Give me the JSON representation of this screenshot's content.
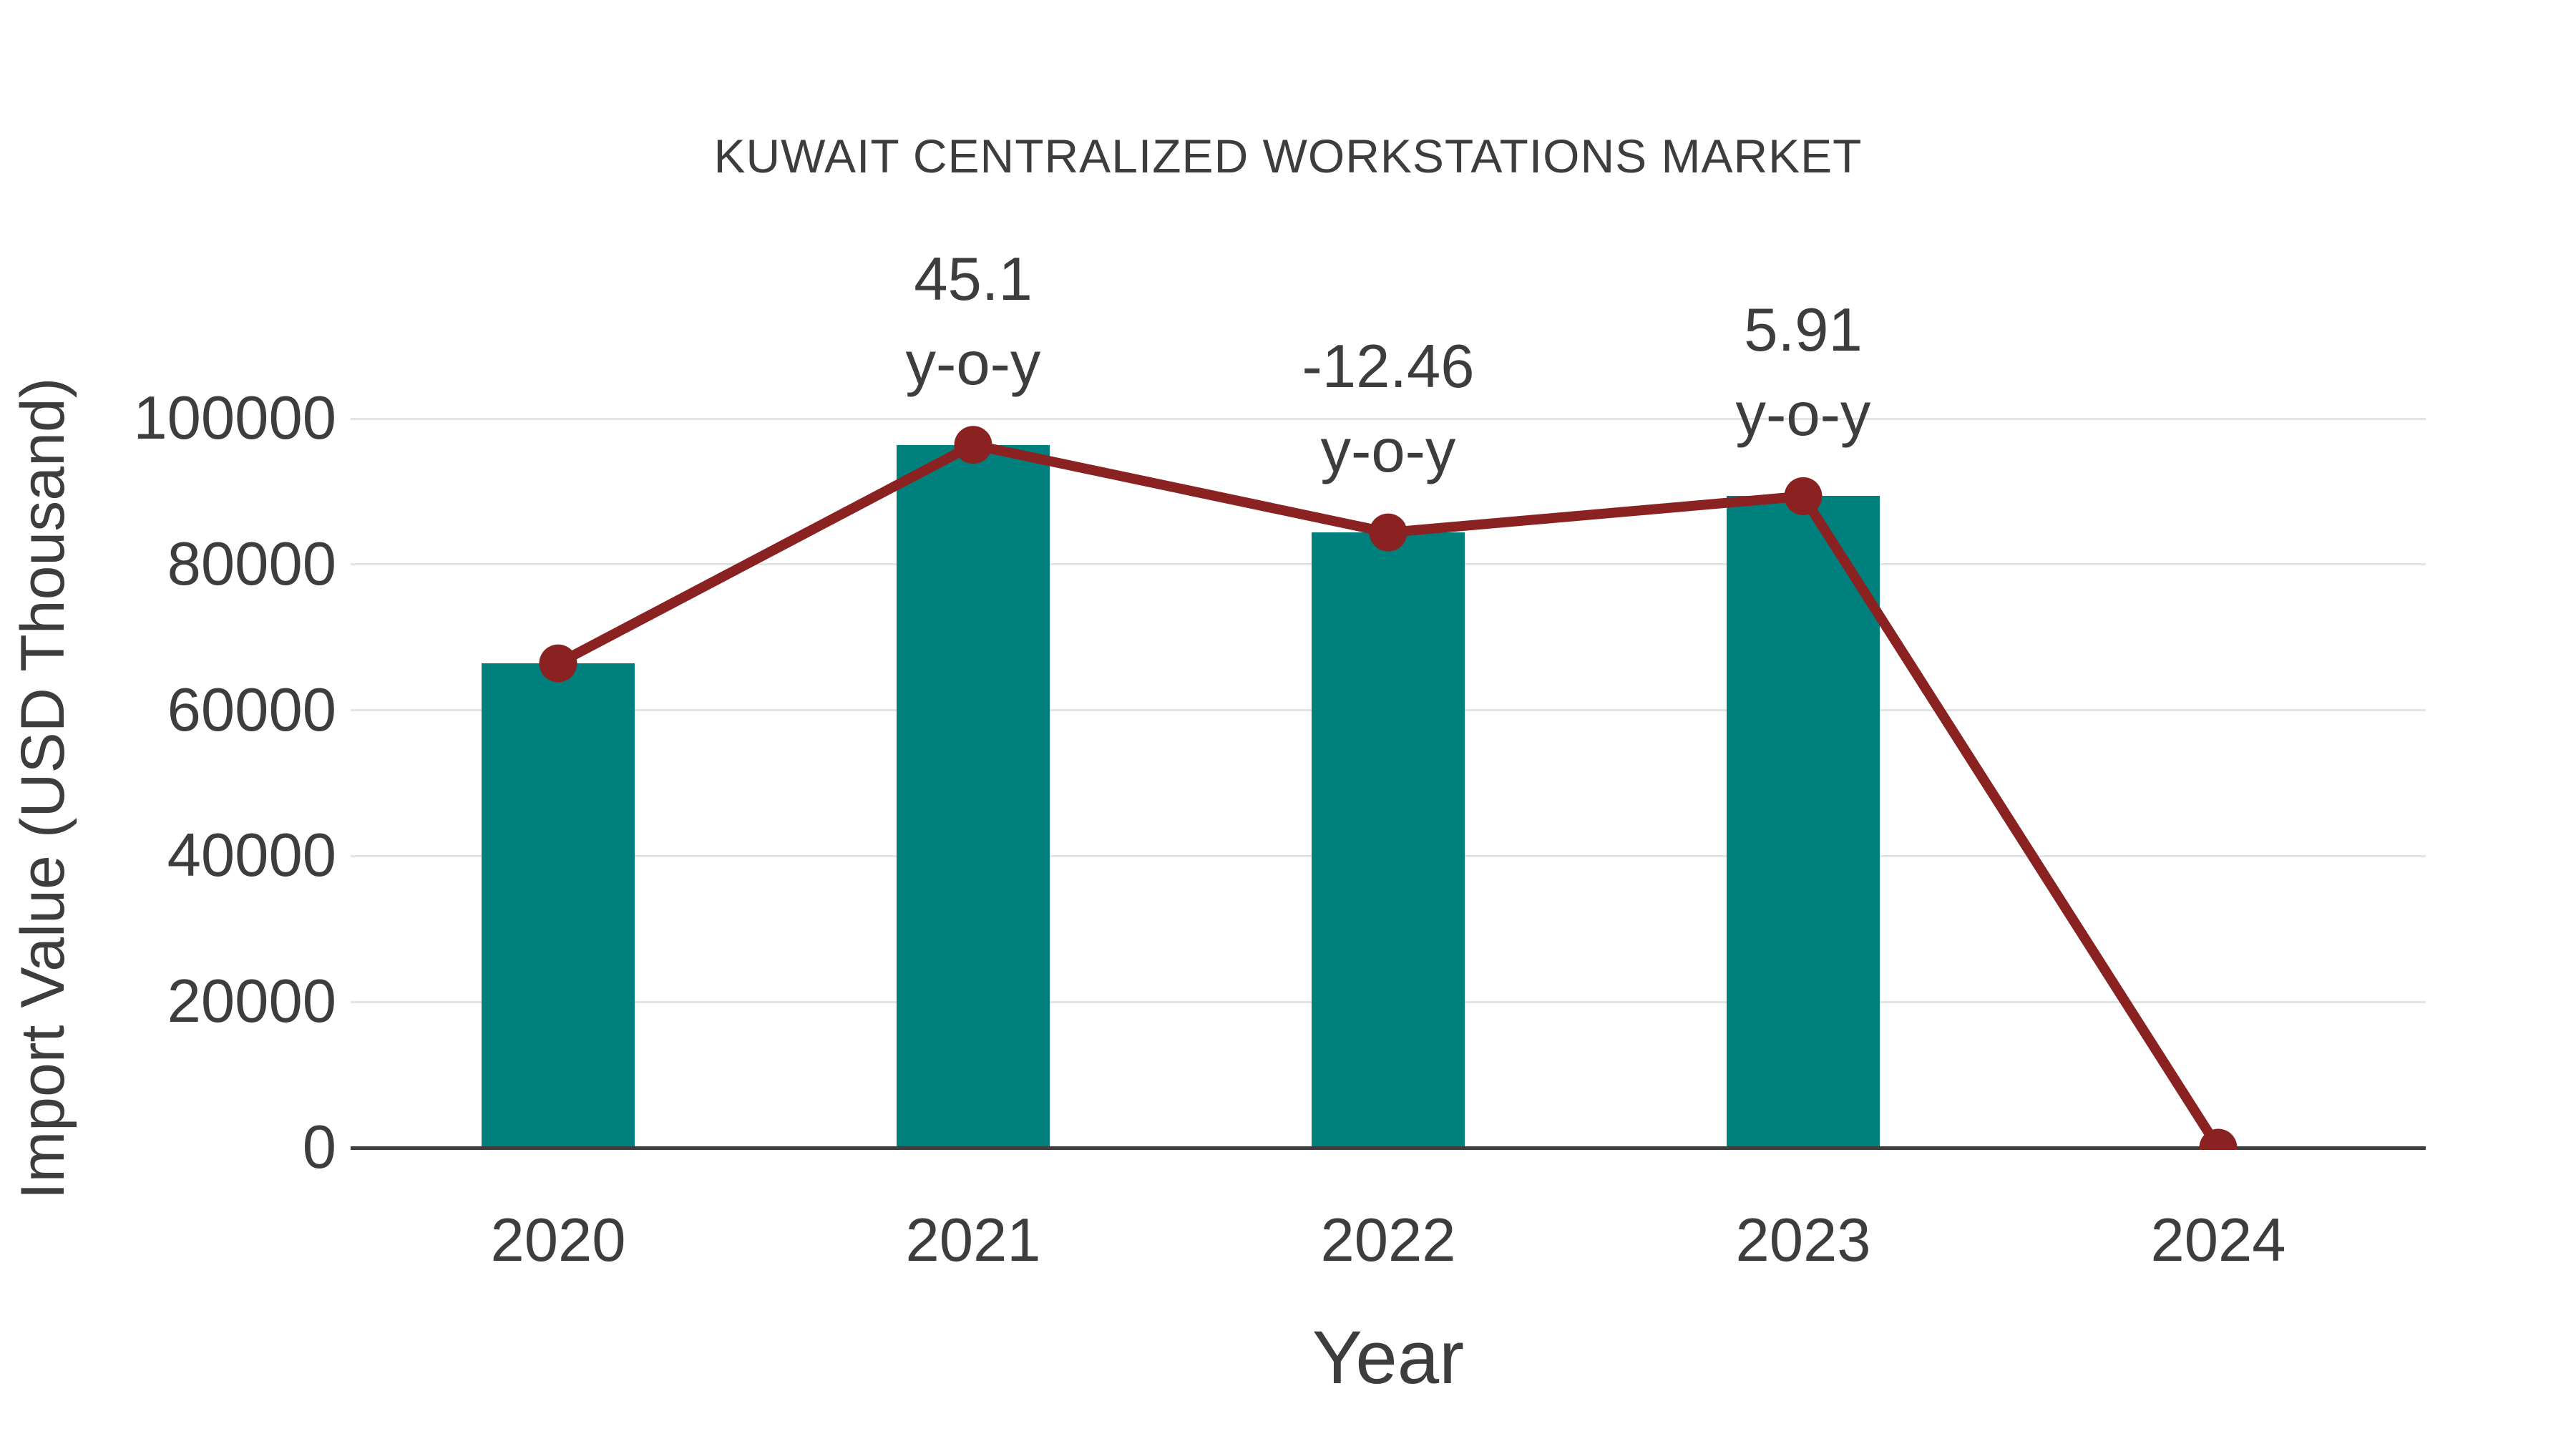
{
  "chart_data": {
    "type": "bar",
    "title": "KUWAIT CENTRALIZED WORKSTATIONS MARKET",
    "xlabel": "Year",
    "ylabel": "Import Value (USD Thousand)",
    "categories": [
      "2020",
      "2021",
      "2022",
      "2023",
      "2024"
    ],
    "series": [
      {
        "name": "Import Value bars",
        "type": "bar",
        "values": [
          66430,
          96390,
          84380,
          89365,
          null
        ],
        "color": "#00807d"
      },
      {
        "name": "Import Value line",
        "type": "line",
        "values": [
          66430,
          96390,
          84380,
          89365,
          0
        ],
        "color": "#8b2222"
      }
    ],
    "annotations": [
      {
        "category": "2021",
        "lines": [
          "45.1",
          "y-o-y"
        ]
      },
      {
        "category": "2022",
        "lines": [
          "-12.46",
          "y-o-y"
        ]
      },
      {
        "category": "2023",
        "lines": [
          "5.91",
          "y-o-y"
        ]
      }
    ],
    "ylim": [
      0,
      100000
    ],
    "yticks": [
      0,
      20000,
      40000,
      60000,
      80000,
      100000
    ],
    "grid": "horizontal",
    "legend": "none",
    "colors": {
      "bar": "#00807d",
      "line": "#8b2222",
      "text": "#3d3d3d",
      "gridline": "#e4e4e4",
      "axis": "#3d3d3d"
    }
  }
}
